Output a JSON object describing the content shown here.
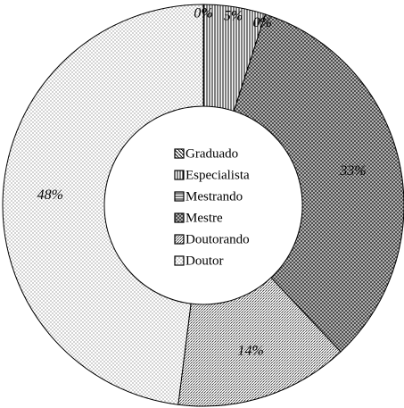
{
  "chart_data": {
    "type": "donut",
    "categories": [
      "Graduado",
      "Especialista",
      "Mestrando",
      "Mestre",
      "Doutorando",
      "Doutor"
    ],
    "values": [
      0,
      5,
      0,
      33,
      14,
      48
    ],
    "value_labels": [
      "0%",
      "5%",
      "0%",
      "33%",
      "14%",
      "48%"
    ],
    "legend": "center"
  }
}
